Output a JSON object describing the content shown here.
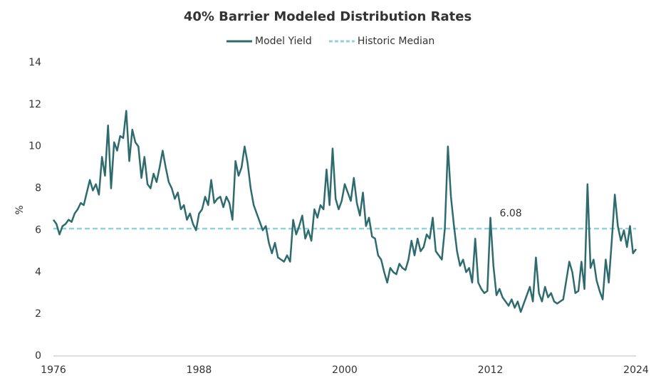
{
  "chart_data": {
    "type": "line",
    "title": "40% Barrier Modeled Distribution Rates",
    "y_label": "%",
    "x": [
      1976,
      1976.25,
      1976.5,
      1976.75,
      1977,
      1977.25,
      1977.5,
      1977.75,
      1978,
      1978.25,
      1978.5,
      1978.75,
      1979,
      1979.25,
      1979.5,
      1979.75,
      1980,
      1980.25,
      1980.5,
      1980.75,
      1981,
      1981.25,
      1981.5,
      1981.75,
      1982,
      1982.25,
      1982.5,
      1982.75,
      1983,
      1983.25,
      1983.5,
      1983.75,
      1984,
      1984.25,
      1984.5,
      1984.75,
      1985,
      1985.25,
      1985.5,
      1985.75,
      1986,
      1986.25,
      1986.5,
      1986.75,
      1987,
      1987.25,
      1987.5,
      1987.75,
      1988,
      1988.25,
      1988.5,
      1988.75,
      1989,
      1989.25,
      1989.5,
      1989.75,
      1990,
      1990.25,
      1990.5,
      1990.75,
      1991,
      1991.25,
      1991.5,
      1991.75,
      1992,
      1992.25,
      1992.5,
      1992.75,
      1993,
      1993.25,
      1993.5,
      1993.75,
      1994,
      1994.25,
      1994.5,
      1994.75,
      1995,
      1995.25,
      1995.5,
      1995.75,
      1996,
      1996.25,
      1996.5,
      1996.75,
      1997,
      1997.25,
      1997.5,
      1997.75,
      1998,
      1998.25,
      1998.5,
      1998.75,
      1999,
      1999.25,
      1999.5,
      1999.75,
      2000,
      2000.25,
      2000.5,
      2000.75,
      2001,
      2001.25,
      2001.5,
      2001.75,
      2002,
      2002.25,
      2002.5,
      2002.75,
      2003,
      2003.25,
      2003.5,
      2003.75,
      2004,
      2004.25,
      2004.5,
      2004.75,
      2005,
      2005.25,
      2005.5,
      2005.75,
      2006,
      2006.25,
      2006.5,
      2006.75,
      2007,
      2007.25,
      2007.5,
      2007.75,
      2008,
      2008.25,
      2008.5,
      2008.75,
      2009,
      2009.25,
      2009.5,
      2009.75,
      2010,
      2010.25,
      2010.5,
      2010.75,
      2011,
      2011.25,
      2011.5,
      2011.75,
      2012,
      2012.25,
      2012.5,
      2012.75,
      2013,
      2013.25,
      2013.5,
      2013.75,
      2014,
      2014.25,
      2014.5,
      2014.75,
      2015,
      2015.25,
      2015.5,
      2015.75,
      2016,
      2016.25,
      2016.5,
      2016.75,
      2017,
      2017.25,
      2017.5,
      2017.75,
      2018,
      2018.25,
      2018.5,
      2018.75,
      2019,
      2019.25,
      2019.5,
      2019.75,
      2020,
      2020.25,
      2020.5,
      2020.75,
      2021,
      2021.25,
      2021.5,
      2021.75,
      2022,
      2022.25,
      2022.5,
      2022.75,
      2023,
      2023.25,
      2023.5,
      2023.75,
      2024
    ],
    "series": [
      {
        "name": "Model Yield",
        "color": "#2e6b6e",
        "values": [
          6.5,
          6.3,
          5.8,
          6.2,
          6.3,
          6.5,
          6.4,
          6.8,
          7.0,
          7.3,
          7.2,
          7.8,
          8.4,
          7.9,
          8.2,
          7.7,
          9.5,
          8.6,
          11.0,
          8.0,
          10.2,
          9.8,
          10.5,
          10.4,
          11.7,
          9.3,
          10.8,
          10.2,
          10.0,
          8.5,
          9.5,
          8.2,
          8.0,
          8.7,
          8.3,
          9.0,
          9.8,
          9.0,
          8.3,
          8.0,
          7.5,
          7.8,
          7.0,
          7.2,
          6.5,
          6.8,
          6.3,
          6.0,
          6.8,
          7.0,
          7.6,
          7.2,
          8.4,
          7.3,
          7.5,
          7.6,
          7.1,
          7.6,
          7.3,
          6.5,
          9.3,
          8.6,
          9.0,
          10.0,
          9.2,
          8.0,
          7.2,
          6.8,
          6.4,
          6.0,
          6.2,
          5.4,
          4.9,
          5.4,
          4.7,
          4.6,
          4.5,
          4.8,
          4.5,
          6.5,
          5.8,
          6.2,
          6.7,
          5.6,
          6.0,
          5.5,
          7.0,
          6.6,
          7.2,
          7.0,
          8.9,
          7.2,
          9.9,
          7.5,
          7.0,
          7.4,
          8.2,
          7.8,
          7.4,
          8.5,
          7.3,
          6.7,
          7.8,
          6.2,
          6.6,
          5.7,
          5.6,
          4.8,
          4.6,
          4.0,
          3.5,
          4.2,
          4.0,
          3.9,
          4.4,
          4.2,
          4.1,
          4.6,
          5.5,
          4.8,
          5.6,
          5.0,
          5.2,
          5.8,
          5.6,
          6.6,
          5.0,
          4.8,
          4.6,
          6.1,
          10.0,
          7.6,
          6.2,
          5.0,
          4.3,
          4.6,
          4.0,
          4.2,
          3.5,
          5.6,
          3.5,
          3.2,
          3.0,
          3.1,
          6.6,
          4.3,
          2.9,
          3.2,
          2.8,
          2.6,
          2.4,
          2.7,
          2.3,
          2.6,
          2.1,
          2.5,
          2.9,
          3.3,
          2.6,
          4.7,
          3.0,
          2.6,
          3.3,
          2.8,
          3.0,
          2.6,
          2.5,
          2.6,
          2.7,
          3.6,
          4.5,
          4.0,
          3.0,
          3.1,
          4.5,
          3.2,
          8.2,
          4.2,
          4.6,
          3.6,
          3.1,
          2.7,
          4.6,
          3.5,
          5.5,
          7.7,
          6.2,
          5.5,
          6.0,
          5.2,
          6.2,
          4.9,
          5.1
        ]
      }
    ],
    "reference_line": {
      "name": "Historic Median",
      "value": 6.08,
      "color": "#8fd3dc"
    },
    "xlim": [
      1976,
      2024
    ],
    "xticks": [
      1976,
      1988,
      2000,
      2012,
      2024
    ],
    "ylim": [
      0,
      14
    ],
    "yticks": [
      0,
      2,
      4,
      6,
      8,
      10,
      12,
      14
    ],
    "grid": false
  }
}
